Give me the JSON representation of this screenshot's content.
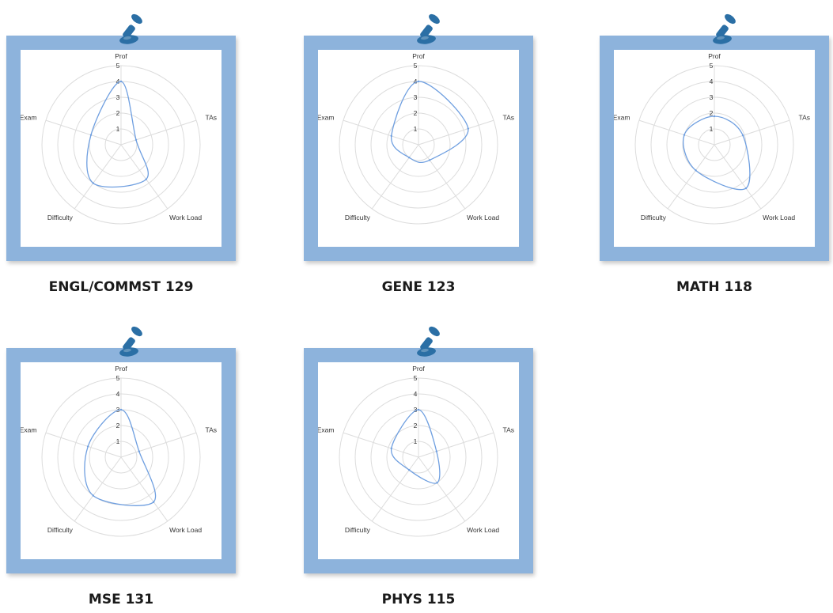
{
  "accent_color": "#8db3dc",
  "pin_color": "#2b6fa5",
  "series_color": "#6f9fe0",
  "chart_data": [
    {
      "type": "radar",
      "title": "ENGL/COMMST 129",
      "axes": [
        "Prof",
        "TAs",
        "Work Load",
        "Difficulty",
        "Exam"
      ],
      "ticks": [
        "1",
        "2",
        "3",
        "4",
        "5"
      ],
      "range": [
        0,
        5
      ],
      "values": [
        4.0,
        1.0,
        2.7,
        3.0,
        2.0
      ],
      "grid": true,
      "legend": "none"
    },
    {
      "type": "radar",
      "title": "GENE 123",
      "axes": [
        "Prof",
        "TAs",
        "Work Load",
        "Difficulty",
        "Exam"
      ],
      "ticks": [
        "1",
        "2",
        "3",
        "4",
        "5"
      ],
      "range": [
        0,
        5
      ],
      "values": [
        4.0,
        3.3,
        1.2,
        1.0,
        1.8
      ],
      "grid": true,
      "legend": "none"
    },
    {
      "type": "radar",
      "title": "MATH 118",
      "axes": [
        "Prof",
        "TAs",
        "Work Load",
        "Difficulty",
        "Exam"
      ],
      "ticks": [
        "1",
        "2",
        "3",
        "4",
        "5"
      ],
      "range": [
        0,
        5
      ],
      "values": [
        1.8,
        1.9,
        3.4,
        2.0,
        2.0
      ],
      "grid": true,
      "legend": "none"
    },
    {
      "type": "radar",
      "title": "MSE 131",
      "axes": [
        "Prof",
        "TAs",
        "Work Load",
        "Difficulty",
        "Exam"
      ],
      "ticks": [
        "1",
        "2",
        "3",
        "4",
        "5"
      ],
      "range": [
        0,
        5
      ],
      "values": [
        3.0,
        1.2,
        3.5,
        3.0,
        2.2
      ],
      "grid": true,
      "legend": "none"
    },
    {
      "type": "radar",
      "title": "PHYS 115",
      "axes": [
        "Prof",
        "TAs",
        "Work Load",
        "Difficulty",
        "Exam"
      ],
      "ticks": [
        "1",
        "2",
        "3",
        "4",
        "5"
      ],
      "range": [
        0,
        5
      ],
      "values": [
        3.0,
        1.2,
        2.0,
        1.0,
        1.8
      ],
      "grid": true,
      "legend": "none"
    }
  ]
}
